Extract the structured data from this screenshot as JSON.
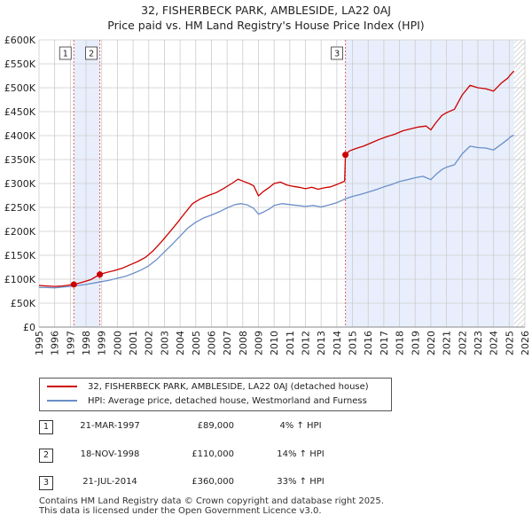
{
  "title_line1": "32, FISHERBECK PARK, AMBLESIDE, LA22 0AJ",
  "title_line2": "Price paid vs. HM Land Registry's House Price Index (HPI)",
  "colors": {
    "price_line": "#cc0000",
    "hpi_line": "#6a8fc9",
    "shade": "#e8eefb",
    "grid": "#cccccc",
    "vline": "#e06060",
    "future_hatch": "#bbbbbb"
  },
  "chart_data": {
    "type": "line",
    "title": "32, FISHERBECK PARK, AMBLESIDE, LA22 0AJ — Price paid vs. HM Land Registry's House Price Index (HPI)",
    "xlabel": "",
    "ylabel": "",
    "xlim": [
      1995,
      2026
    ],
    "ylim": [
      0,
      600000
    ],
    "x_ticks": [
      "1995",
      "1996",
      "1997",
      "1998",
      "1999",
      "2000",
      "2001",
      "2002",
      "2003",
      "2004",
      "2005",
      "2006",
      "2007",
      "2008",
      "2009",
      "2010",
      "2011",
      "2012",
      "2013",
      "2014",
      "2015",
      "2016",
      "2017",
      "2018",
      "2019",
      "2020",
      "2021",
      "2022",
      "2023",
      "2024",
      "2025",
      "2026"
    ],
    "y_ticks": [
      {
        "value": 0,
        "label": "£0"
      },
      {
        "value": 50000,
        "label": "£50K"
      },
      {
        "value": 100000,
        "label": "£100K"
      },
      {
        "value": 150000,
        "label": "£150K"
      },
      {
        "value": 200000,
        "label": "£200K"
      },
      {
        "value": 250000,
        "label": "£250K"
      },
      {
        "value": 300000,
        "label": "£300K"
      },
      {
        "value": 350000,
        "label": "£350K"
      },
      {
        "value": 400000,
        "label": "£400K"
      },
      {
        "value": 450000,
        "label": "£450K"
      },
      {
        "value": 500000,
        "label": "£500K"
      },
      {
        "value": 550000,
        "label": "£550K"
      },
      {
        "value": 600000,
        "label": "£600K"
      }
    ],
    "grid": true,
    "shaded_ranges": [
      [
        1997.22,
        1998.88
      ],
      [
        2014.55,
        2025.3
      ]
    ],
    "future_hatch_from": 2025.3,
    "series": [
      {
        "name": "32, FISHERBECK PARK, AMBLESIDE, LA22 0AJ (detached house)",
        "color": "#cc0000",
        "points": [
          [
            1995.0,
            87000
          ],
          [
            1995.5,
            86000
          ],
          [
            1996.0,
            85000
          ],
          [
            1996.5,
            86000
          ],
          [
            1997.22,
            89000
          ],
          [
            1997.7,
            93000
          ],
          [
            1998.3,
            99000
          ],
          [
            1998.88,
            110000
          ],
          [
            1999.3,
            114000
          ],
          [
            1999.8,
            118000
          ],
          [
            2000.3,
            123000
          ],
          [
            2000.8,
            130000
          ],
          [
            2001.3,
            137000
          ],
          [
            2001.8,
            146000
          ],
          [
            2002.3,
            160000
          ],
          [
            2002.8,
            178000
          ],
          [
            2003.3,
            197000
          ],
          [
            2003.8,
            217000
          ],
          [
            2004.3,
            238000
          ],
          [
            2004.8,
            258000
          ],
          [
            2005.3,
            268000
          ],
          [
            2005.8,
            275000
          ],
          [
            2006.3,
            281000
          ],
          [
            2006.8,
            290000
          ],
          [
            2007.3,
            300000
          ],
          [
            2007.7,
            309000
          ],
          [
            2008.0,
            305000
          ],
          [
            2008.4,
            300000
          ],
          [
            2008.7,
            295000
          ],
          [
            2009.0,
            274000
          ],
          [
            2009.3,
            283000
          ],
          [
            2009.7,
            292000
          ],
          [
            2010.0,
            300000
          ],
          [
            2010.4,
            303000
          ],
          [
            2010.8,
            297000
          ],
          [
            2011.2,
            294000
          ],
          [
            2011.6,
            292000
          ],
          [
            2012.0,
            289000
          ],
          [
            2012.4,
            292000
          ],
          [
            2012.8,
            288000
          ],
          [
            2013.2,
            291000
          ],
          [
            2013.6,
            293000
          ],
          [
            2014.0,
            298000
          ],
          [
            2014.3,
            302000
          ],
          [
            2014.5,
            305000
          ],
          [
            2014.55,
            360000
          ],
          [
            2014.8,
            368000
          ],
          [
            2015.2,
            373000
          ],
          [
            2015.7,
            378000
          ],
          [
            2016.2,
            385000
          ],
          [
            2016.7,
            392000
          ],
          [
            2017.2,
            398000
          ],
          [
            2017.7,
            403000
          ],
          [
            2018.2,
            410000
          ],
          [
            2018.7,
            414000
          ],
          [
            2019.2,
            418000
          ],
          [
            2019.7,
            420000
          ],
          [
            2020.0,
            412000
          ],
          [
            2020.3,
            426000
          ],
          [
            2020.7,
            442000
          ],
          [
            2021.0,
            448000
          ],
          [
            2021.5,
            455000
          ],
          [
            2022.0,
            485000
          ],
          [
            2022.5,
            505000
          ],
          [
            2023.0,
            500000
          ],
          [
            2023.5,
            498000
          ],
          [
            2024.0,
            493000
          ],
          [
            2024.5,
            510000
          ],
          [
            2024.9,
            520000
          ],
          [
            2025.1,
            528000
          ],
          [
            2025.3,
            535000
          ]
        ]
      },
      {
        "name": "HPI: Average price, detached house, Westmorland and Furness",
        "color": "#6a8fc9",
        "points": [
          [
            1995.0,
            83000
          ],
          [
            1995.5,
            82500
          ],
          [
            1996.0,
            82000
          ],
          [
            1996.5,
            83500
          ],
          [
            1997.0,
            85000
          ],
          [
            1997.5,
            87000
          ],
          [
            1998.0,
            89000
          ],
          [
            1998.5,
            92000
          ],
          [
            1999.0,
            95000
          ],
          [
            1999.5,
            98000
          ],
          [
            2000.0,
            102000
          ],
          [
            2000.5,
            106000
          ],
          [
            2001.0,
            112000
          ],
          [
            2001.5,
            119000
          ],
          [
            2002.0,
            128000
          ],
          [
            2002.5,
            141000
          ],
          [
            2003.0,
            157000
          ],
          [
            2003.5,
            173000
          ],
          [
            2004.0,
            190000
          ],
          [
            2004.5,
            207000
          ],
          [
            2005.0,
            219000
          ],
          [
            2005.5,
            228000
          ],
          [
            2006.0,
            234000
          ],
          [
            2006.5,
            241000
          ],
          [
            2007.0,
            249000
          ],
          [
            2007.5,
            256000
          ],
          [
            2007.9,
            258000
          ],
          [
            2008.3,
            255000
          ],
          [
            2008.7,
            248000
          ],
          [
            2009.0,
            236000
          ],
          [
            2009.3,
            240000
          ],
          [
            2009.7,
            247000
          ],
          [
            2010.0,
            254000
          ],
          [
            2010.5,
            258000
          ],
          [
            2011.0,
            256000
          ],
          [
            2011.5,
            254000
          ],
          [
            2012.0,
            252000
          ],
          [
            2012.5,
            254000
          ],
          [
            2013.0,
            251000
          ],
          [
            2013.5,
            255000
          ],
          [
            2014.0,
            260000
          ],
          [
            2014.55,
            268000
          ],
          [
            2015.0,
            273000
          ],
          [
            2015.5,
            277000
          ],
          [
            2016.0,
            282000
          ],
          [
            2016.5,
            287000
          ],
          [
            2017.0,
            293000
          ],
          [
            2017.5,
            298000
          ],
          [
            2018.0,
            304000
          ],
          [
            2018.5,
            308000
          ],
          [
            2019.0,
            312000
          ],
          [
            2019.5,
            315000
          ],
          [
            2020.0,
            308000
          ],
          [
            2020.3,
            318000
          ],
          [
            2020.7,
            329000
          ],
          [
            2021.0,
            334000
          ],
          [
            2021.5,
            339000
          ],
          [
            2022.0,
            362000
          ],
          [
            2022.5,
            378000
          ],
          [
            2023.0,
            375000
          ],
          [
            2023.5,
            374000
          ],
          [
            2024.0,
            370000
          ],
          [
            2024.5,
            382000
          ],
          [
            2024.9,
            392000
          ],
          [
            2025.1,
            398000
          ],
          [
            2025.3,
            401000
          ]
        ]
      }
    ],
    "sales": [
      {
        "num": "1",
        "x": 1997.22,
        "price": 89000
      },
      {
        "num": "2",
        "x": 1998.88,
        "price": 110000
      },
      {
        "num": "3",
        "x": 2014.55,
        "price": 360000
      }
    ]
  },
  "legend": [
    {
      "label": "32, FISHERBECK PARK, AMBLESIDE, LA22 0AJ (detached house)",
      "color": "#cc0000"
    },
    {
      "label": "HPI: Average price, detached house, Westmorland and Furness",
      "color": "#6a8fc9"
    }
  ],
  "sales_table": [
    {
      "num": "1",
      "date": "21-MAR-1997",
      "price": "£89,000",
      "hpi": "4% ↑ HPI"
    },
    {
      "num": "2",
      "date": "18-NOV-1998",
      "price": "£110,000",
      "hpi": "14% ↑ HPI"
    },
    {
      "num": "3",
      "date": "21-JUL-2014",
      "price": "£360,000",
      "hpi": "33% ↑ HPI"
    }
  ],
  "footer_line1": "Contains HM Land Registry data © Crown copyright and database right 2025.",
  "footer_line2": "This data is licensed under the Open Government Licence v3.0."
}
